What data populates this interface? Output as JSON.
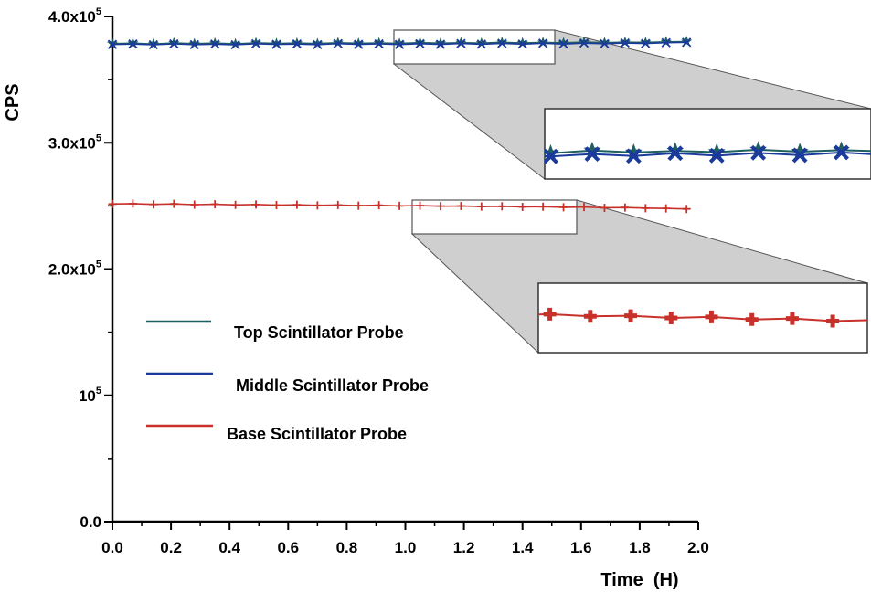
{
  "chart_data": {
    "type": "line",
    "title": "",
    "xlabel": "Time  (H)",
    "ylabel": "CPS",
    "xlim": [
      0,
      2
    ],
    "ylim": [
      0,
      400000
    ],
    "x_ticks": [
      0.0,
      0.2,
      0.4,
      0.6,
      0.8,
      1.0,
      1.2,
      1.4,
      1.6,
      1.8,
      2.0
    ],
    "x_tick_labels": [
      "0.0",
      "0.2",
      "0.4",
      "0.6",
      "0.8",
      "1.0",
      "1.2",
      "1.4",
      "1.6",
      "1.8",
      "2.0"
    ],
    "y_ticks": [
      {
        "value": 0,
        "mantissa": "0.0",
        "exp": ""
      },
      {
        "value": 100000,
        "mantissa": "10",
        "exp": "5"
      },
      {
        "value": 200000,
        "mantissa": "2.0x10",
        "exp": "5"
      },
      {
        "value": 300000,
        "mantissa": "3.0x10",
        "exp": "5"
      },
      {
        "value": 400000,
        "mantissa": "4.0x10",
        "exp": "5"
      }
    ],
    "legend_position": "left-middle",
    "series": [
      {
        "name": "Top Scintillator Probe",
        "color": "#1f5f5f",
        "marker": "star",
        "x": [
          0.0,
          0.07,
          0.14,
          0.21,
          0.28,
          0.35,
          0.42,
          0.49,
          0.56,
          0.63,
          0.7,
          0.77,
          0.84,
          0.91,
          0.98,
          1.05,
          1.12,
          1.19,
          1.26,
          1.33,
          1.4,
          1.47,
          1.54,
          1.61,
          1.68,
          1.75,
          1.82,
          1.89,
          1.96
        ],
        "y": [
          378500,
          378800,
          378200,
          379000,
          378400,
          378900,
          378300,
          379100,
          378600,
          378900,
          378500,
          379200,
          378700,
          379000,
          378600,
          379300,
          378800,
          379200,
          378900,
          379500,
          379000,
          379400,
          379100,
          379700,
          379300,
          379600,
          379400,
          379900,
          380100
        ]
      },
      {
        "name": "Middle Scintillator Probe",
        "color": "#1a3a9c",
        "marker": "x",
        "x": [
          0.0,
          0.07,
          0.14,
          0.21,
          0.28,
          0.35,
          0.42,
          0.49,
          0.56,
          0.63,
          0.7,
          0.77,
          0.84,
          0.91,
          0.98,
          1.05,
          1.12,
          1.19,
          1.26,
          1.33,
          1.4,
          1.47,
          1.54,
          1.61,
          1.68,
          1.75,
          1.82,
          1.89,
          1.96
        ],
        "y": [
          377800,
          378200,
          377600,
          378300,
          377700,
          378100,
          377600,
          378400,
          377900,
          378200,
          377700,
          378500,
          377900,
          378300,
          377800,
          378400,
          377900,
          378600,
          378000,
          378700,
          378100,
          378800,
          378200,
          378900,
          378400,
          379000,
          378600,
          379200,
          379500
        ]
      },
      {
        "name": "Base Scintillator Probe",
        "color": "#c8302a",
        "marker": "plus",
        "x": [
          0.0,
          0.07,
          0.14,
          0.21,
          0.28,
          0.35,
          0.42,
          0.49,
          0.56,
          0.63,
          0.7,
          0.77,
          0.84,
          0.91,
          0.98,
          1.05,
          1.12,
          1.19,
          1.26,
          1.33,
          1.4,
          1.47,
          1.54,
          1.61,
          1.68,
          1.75,
          1.82,
          1.89,
          1.96
        ],
        "y": [
          251500,
          251800,
          251200,
          251600,
          251000,
          251300,
          250800,
          251100,
          250600,
          250900,
          250400,
          250700,
          250200,
          250500,
          250000,
          250200,
          249800,
          249900,
          249500,
          249700,
          249200,
          249400,
          248900,
          249100,
          248500,
          248700,
          248200,
          248000,
          247600
        ]
      }
    ],
    "insets": [
      {
        "name": "zoom-top",
        "series": [
          "Top Scintillator Probe",
          "Middle Scintillator Probe"
        ],
        "x_range": [
          0.97,
          1.52
        ],
        "y_range": [
          372000,
          390000
        ]
      },
      {
        "name": "zoom-base",
        "series": [
          "Base Scintillator Probe"
        ],
        "x_range": [
          1.03,
          1.6
        ],
        "y_range": [
          243000,
          256000
        ]
      }
    ]
  }
}
